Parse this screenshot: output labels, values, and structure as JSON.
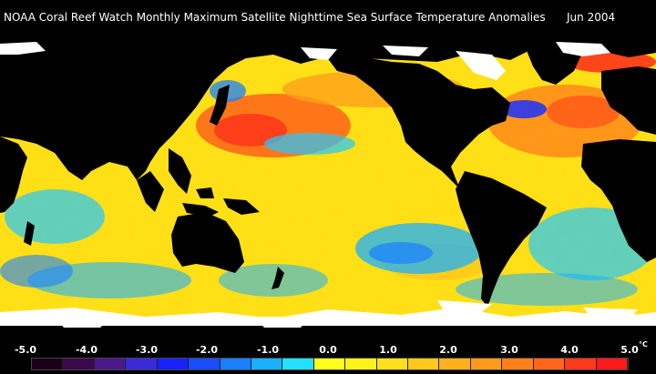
{
  "title": {
    "main": "NOAA Coral Reef Watch Monthly Maximum Satellite Nighttime Sea Surface Temperature Anomalies",
    "date": "Jun 2004"
  },
  "legend": {
    "ticks": [
      "-5.0",
      "-4.0",
      "-3.0",
      "-2.0",
      "-1.0",
      "0.0",
      "1.0",
      "2.0",
      "3.0",
      "4.0",
      "5.0"
    ],
    "unit": "°C",
    "colors": [
      "#1a0018",
      "#3a0a4a",
      "#4a1a8c",
      "#3a2adc",
      "#1a20ff",
      "#1a4cff",
      "#1a80ff",
      "#1ab0ff",
      "#22e0ff",
      "#ffff1a",
      "#fff21a",
      "#ffe01a",
      "#ffc81a",
      "#ffb01a",
      "#ff9a1a",
      "#ff801a",
      "#ff661a",
      "#ff3a1a",
      "#ff1a1a"
    ]
  },
  "map": {
    "land_color": "#000000",
    "ice_color": "#ffffff",
    "ocean_base_color": "#ffe000"
  }
}
